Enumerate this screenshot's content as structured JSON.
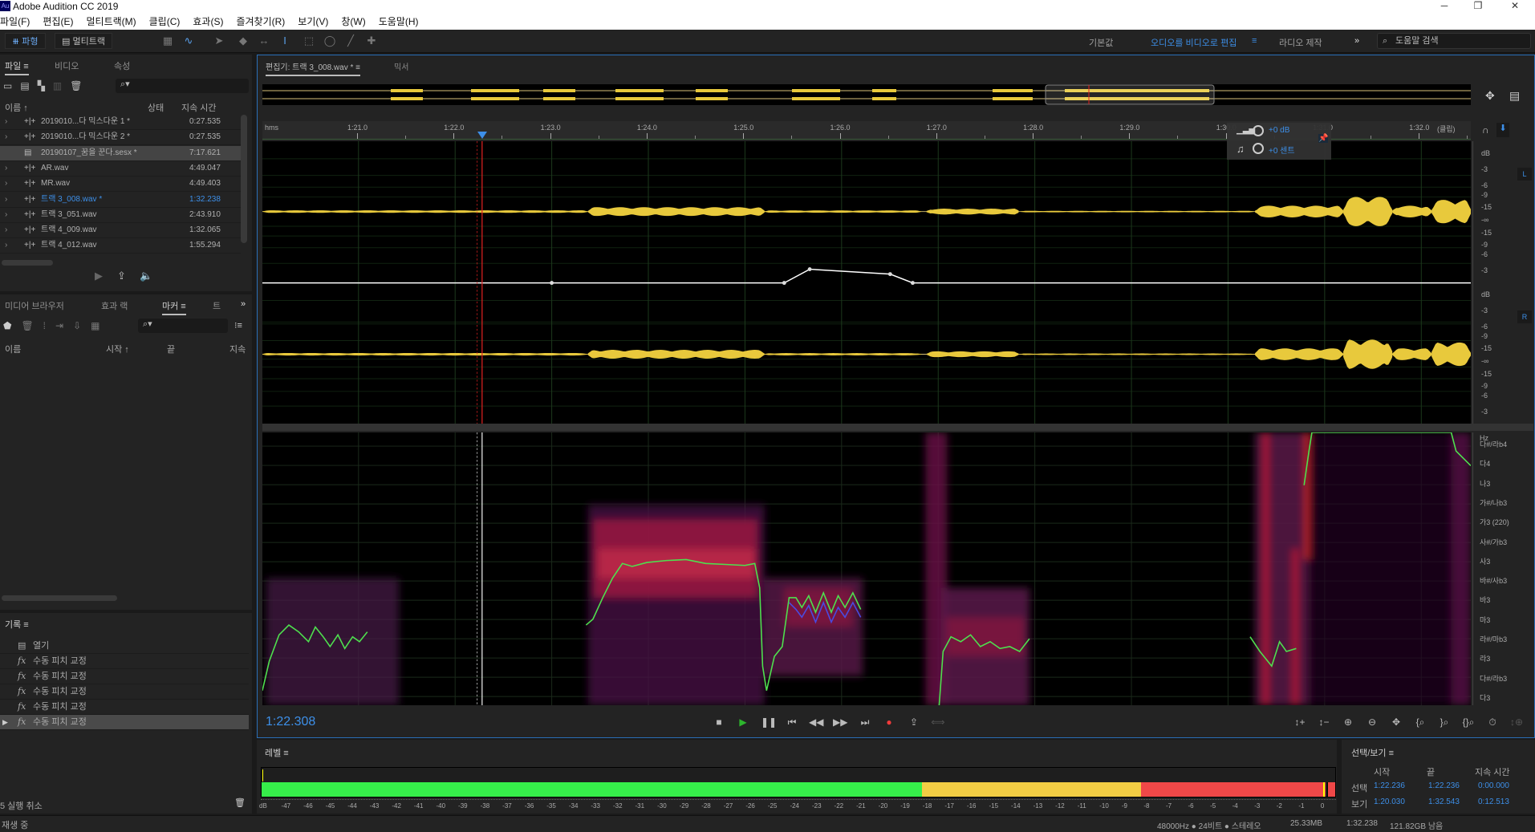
{
  "app": {
    "title": "Adobe Audition CC 2019",
    "logo": "Au"
  },
  "menu": [
    "파일(F)",
    "편집(E)",
    "멀티트랙(M)",
    "클립(C)",
    "효과(S)",
    "즐겨찾기(R)",
    "보기(V)",
    "창(W)",
    "도움말(H)"
  ],
  "toolbar": {
    "waveform": "파형",
    "multitrack": "멀티트랙"
  },
  "workspaces": {
    "default": "기본값",
    "active": "오디오를 비디오로 편집",
    "radio": "라디오 제작",
    "more": "»",
    "search_placeholder": "도움말 검색"
  },
  "files": {
    "tabs": [
      "파일",
      "비디오",
      "속성"
    ],
    "columns": {
      "name": "이름 ↑",
      "status": "상태",
      "duration": "지속 시간"
    },
    "items": [
      {
        "name": "2019010...다 믹스다운 1 *",
        "duration": "0:27.535",
        "type": "wave"
      },
      {
        "name": "2019010...다 믹스다운 2 *",
        "duration": "0:27.535",
        "type": "wave"
      },
      {
        "name": "20190107_꿈을 꾼다.sesx *",
        "duration": "7:17.621",
        "type": "session",
        "selected": true
      },
      {
        "name": "AR.wav",
        "duration": "4:49.047",
        "type": "wave"
      },
      {
        "name": "MR.wav",
        "duration": "4:49.403",
        "type": "wave"
      },
      {
        "name": "트랙 3_008.wav *",
        "duration": "1:32.238",
        "type": "wave",
        "active": true
      },
      {
        "name": "트랙 3_051.wav",
        "duration": "2:43.910",
        "type": "wave"
      },
      {
        "name": "트랙 4_009.wav",
        "duration": "1:32.065",
        "type": "wave"
      },
      {
        "name": "트랙 4_012.wav",
        "duration": "1:55.294",
        "type": "wave"
      }
    ]
  },
  "markers": {
    "tabs": [
      "미디어 브라우저",
      "효과 랙",
      "마커",
      "트"
    ],
    "columns": {
      "name": "이름",
      "start": "시작 ↑",
      "end": "끝",
      "duration": "지속"
    }
  },
  "history": {
    "title": "기록",
    "items": [
      {
        "icon": "open",
        "label": "열기"
      },
      {
        "icon": "fx",
        "label": "수동 피치 교정"
      },
      {
        "icon": "fx",
        "label": "수동 피치 교정"
      },
      {
        "icon": "fx",
        "label": "수동 피치 교정"
      },
      {
        "icon": "fx",
        "label": "수동 피치 교정"
      },
      {
        "icon": "fx",
        "label": "수동 피치 교정",
        "current": true
      }
    ],
    "undo": "5 실행 취소"
  },
  "editor": {
    "tab": "편집기: 트랙 3_008.wav *",
    "mixer": "믹서",
    "ruler": {
      "unit": "hms",
      "labels": [
        "1:21.0",
        "1:22.0",
        "1:23.0",
        "1:24.0",
        "1:25.0",
        "1:26.0",
        "1:27.0",
        "1:28.0",
        "1:29.0",
        "1:30.0",
        "1:31.0",
        "1:32.0"
      ],
      "clip": "(클립)"
    },
    "hud": {
      "volume": "+0 dB",
      "pitch": "+0 센트"
    },
    "db_scale": [
      "dB",
      "-3",
      "-6",
      "-9",
      "-15",
      "-∞",
      "-15",
      "-9",
      "-6",
      "-3"
    ],
    "channels": {
      "left": "L",
      "right": "R"
    },
    "pitch_scale": [
      "Hz",
      "다#/라b4",
      "다4",
      "나3",
      "가#/나b3",
      "가3 (220)",
      "사#/가b3",
      "사3",
      "바#/사b3",
      "바3",
      "마3",
      "라#/마b3",
      "라3",
      "다#/라b3",
      "다3"
    ],
    "current_time": "1:22.308"
  },
  "level": {
    "title": "레벨",
    "ticks": [
      "dB",
      "-47",
      "-46",
      "-45",
      "-44",
      "-43",
      "-42",
      "-41",
      "-40",
      "-39",
      "-38",
      "-37",
      "-36",
      "-35",
      "-34",
      "-33",
      "-32",
      "-31",
      "-30",
      "-29",
      "-28",
      "-27",
      "-26",
      "-25",
      "-24",
      "-23",
      "-22",
      "-21",
      "-20",
      "-19",
      "-18",
      "-17",
      "-16",
      "-15",
      "-14",
      "-13",
      "-12",
      "-11",
      "-10",
      "-9",
      "-8",
      "-7",
      "-6",
      "-5",
      "-4",
      "-3",
      "-2",
      "-1",
      "0"
    ],
    "colors": {
      "green": "#36ee4a",
      "yellow": "#f2cd44",
      "red": "#f04848"
    }
  },
  "selection": {
    "title": "선택/보기",
    "cols": [
      "시작",
      "끝",
      "지속 시간"
    ],
    "rows": [
      {
        "label": "선택",
        "start": "1:22.236",
        "end": "1:22.236",
        "duration": "0:00.000"
      },
      {
        "label": "보기",
        "start": "1:20.030",
        "end": "1:32.543",
        "duration": "0:12.513"
      }
    ]
  },
  "status": {
    "state": "재생 중",
    "format": "48000Hz ● 24비트 ● 스테레오",
    "size": "25.33MB",
    "duration": "1:32.238",
    "free": "121.82GB 남음"
  },
  "colors": {
    "accent": "#3d8fe8",
    "waveform": "#e8c93c",
    "pitch": "#4ee04e",
    "playhead": "#e02020"
  }
}
